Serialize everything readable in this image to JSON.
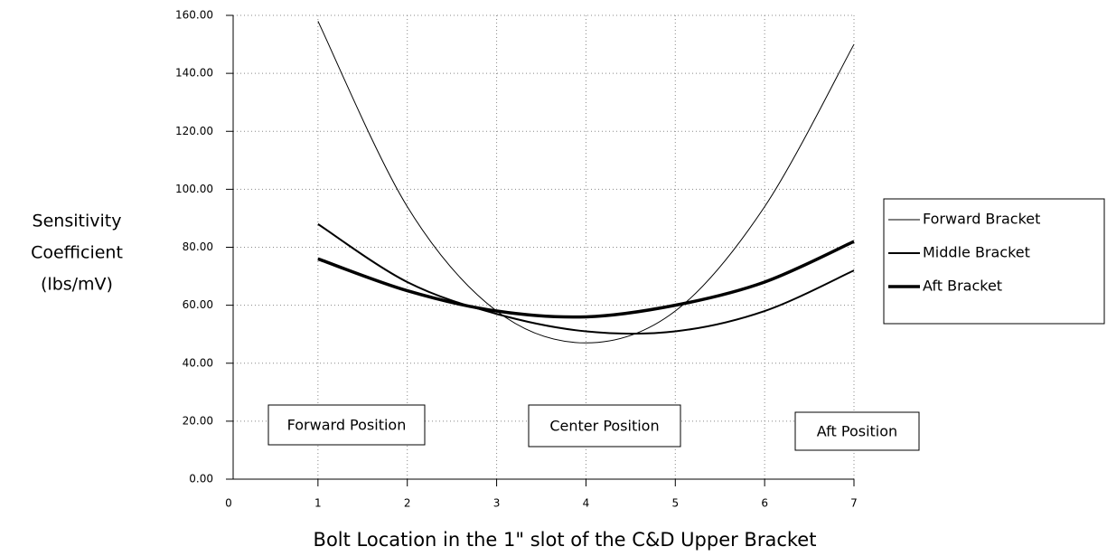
{
  "chart_data": {
    "type": "line",
    "xlabel": "Bolt Location in the 1\" slot of the C&D Upper Bracket",
    "ylabel": [
      "Sensitivity",
      "Coefficient",
      "(lbs/mV)"
    ],
    "x": [
      1,
      2,
      3,
      4,
      5,
      6,
      7
    ],
    "series": [
      {
        "name": "Forward Bracket",
        "color": "#000000",
        "width": 1,
        "values": [
          158,
          94,
          58,
          47,
          58,
          94,
          150
        ]
      },
      {
        "name": "Middle Bracket",
        "color": "#000000",
        "width": 2,
        "values": [
          88,
          68,
          57,
          51,
          51,
          58,
          72
        ]
      },
      {
        "name": "Aft Bracket",
        "color": "#000000",
        "width": 3.5,
        "values": [
          76,
          65,
          58,
          56,
          60,
          68,
          82
        ]
      }
    ],
    "annotations": [
      "Forward Position",
      "Center Position",
      "Aft Position"
    ],
    "xlim": [
      0,
      7
    ],
    "xticks": [
      0,
      1,
      2,
      3,
      4,
      5,
      6,
      7
    ],
    "ylim": [
      0,
      160
    ],
    "yticks": [
      {
        "value": 0,
        "label": "0.00"
      },
      {
        "value": 20,
        "label": "20.00"
      },
      {
        "value": 40,
        "label": "40.00"
      },
      {
        "value": 60,
        "label": "60.00"
      },
      {
        "value": 80,
        "label": "80.00"
      },
      {
        "value": 100,
        "label": "100.00"
      },
      {
        "value": 120,
        "label": "120.00"
      },
      {
        "value": 140,
        "label": "140.00"
      },
      {
        "value": 160,
        "label": "160.00"
      }
    ],
    "grid": true,
    "legend": "right"
  }
}
